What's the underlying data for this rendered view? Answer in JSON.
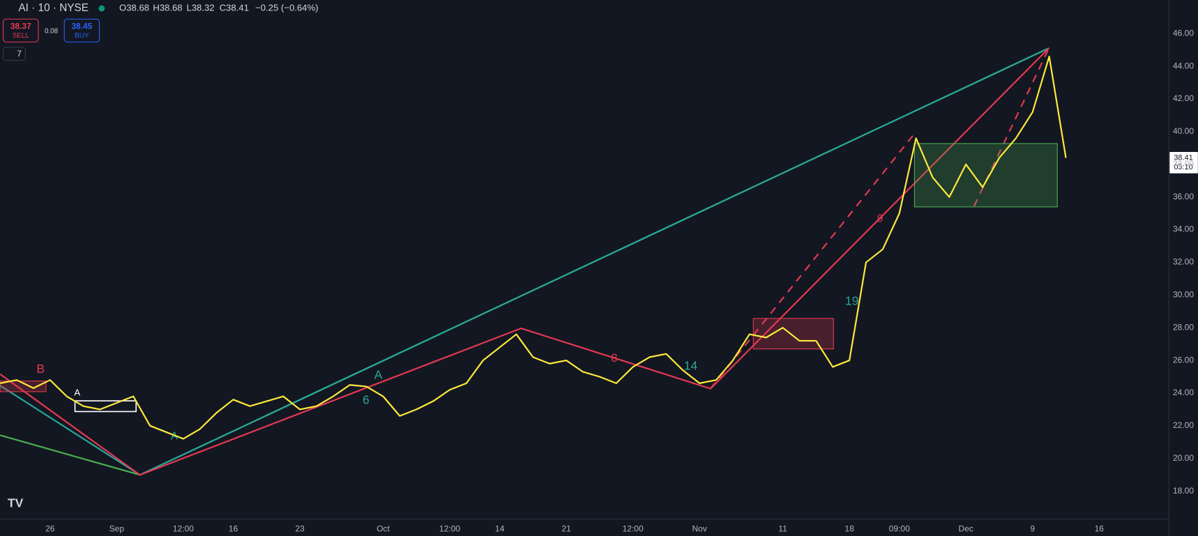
{
  "header": {
    "symbol": "AI · 10 · NYSE",
    "open": "O38.68",
    "high": "H38.68",
    "low": "L38.32",
    "close": "C38.41",
    "change": "−0.25 (−0.64%)",
    "sell_price": "38.37",
    "sell": "SELL",
    "spread": "0.08",
    "buy_price": "38.45",
    "buy": "BUY",
    "indicators": "7"
  },
  "price_tag": {
    "price": "38.41",
    "countdown": "03:10"
  },
  "annotations": [
    "B",
    "A",
    "A",
    "A",
    "6",
    "8",
    "9",
    "14",
    "19"
  ],
  "chart_data": {
    "type": "line",
    "categories": [
      null,
      null,
      null,
      "26",
      null,
      null,
      null,
      "Sep",
      null,
      null,
      null,
      "12:00",
      null,
      null,
      "16",
      null,
      null,
      null,
      "23",
      null,
      null,
      null,
      null,
      "Oct",
      null,
      null,
      null,
      "12:00",
      null,
      null,
      "14",
      null,
      null,
      null,
      "21",
      null,
      null,
      null,
      "12:00",
      null,
      null,
      null,
      "Nov",
      null,
      null,
      null,
      null,
      "11",
      null,
      null,
      null,
      "18",
      null,
      null,
      "09:00",
      null,
      null,
      null,
      "Dec",
      null,
      null,
      null,
      "9",
      null,
      null,
      null,
      "16"
    ],
    "series": [
      {
        "color": "#ffeb3b",
        "values": [
          24.6,
          24.8,
          24.3,
          24.8,
          23.8,
          23.2,
          23.0,
          23.4,
          23.8,
          22.0,
          21.6,
          21.2,
          21.8,
          22.8,
          23.6,
          23.2,
          23.5,
          23.8,
          23.0,
          23.2,
          23.8,
          24.5,
          24.4,
          23.8,
          22.6,
          23.0,
          23.5,
          24.2,
          24.6,
          26.0,
          26.8,
          27.6,
          26.2,
          25.8,
          26.0,
          25.3,
          25.0,
          24.6,
          25.6,
          26.2,
          26.4,
          25.4,
          24.6,
          24.8,
          26.0,
          27.6,
          27.4,
          28.0,
          27.2,
          27.2,
          25.6,
          26.0,
          32.0,
          32.8,
          35.0,
          39.6,
          37.2,
          36.0,
          38.0,
          36.6,
          38.4,
          39.6,
          41.2,
          44.6,
          38.4,
          null,
          null
        ]
      }
    ],
    "ylim": [
      16.28,
      48.06
    ],
    "yticks": [
      {
        "value": 18,
        "label": "18.00"
      },
      {
        "value": 20,
        "label": "20.00"
      },
      {
        "value": 22,
        "label": "22.00"
      },
      {
        "value": 24,
        "label": "24.00"
      },
      {
        "value": 26,
        "label": "26.00"
      },
      {
        "value": 28,
        "label": "28.00"
      },
      {
        "value": 30,
        "label": "30.00"
      },
      {
        "value": 32,
        "label": "32.00"
      },
      {
        "value": 34,
        "label": "34.00"
      },
      {
        "value": 36,
        "label": "36.00"
      },
      {
        "value": 38,
        "label": "38.00"
      },
      {
        "value": 40,
        "label": "40.00"
      },
      {
        "value": 42,
        "label": "42.00"
      },
      {
        "value": 44,
        "label": "44.00"
      },
      {
        "value": 46,
        "label": "46.00"
      }
    ],
    "grid": false
  }
}
